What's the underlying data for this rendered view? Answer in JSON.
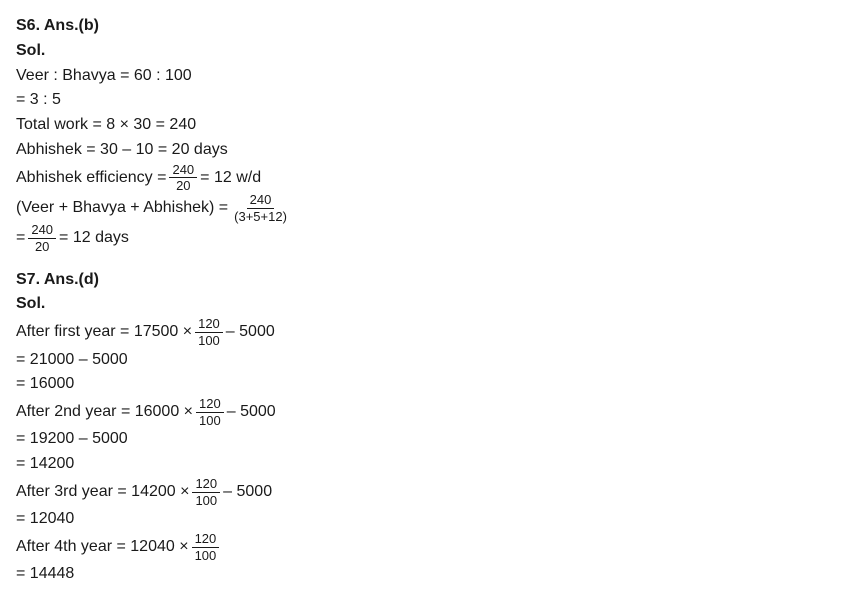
{
  "s6": {
    "heading": "S6. Ans.(b)",
    "sol_label": "Sol.",
    "line1": "Veer : Bhavya = 60 : 100",
    "line2": "= 3 : 5",
    "line3": "Total work = 8 × 30 = 240",
    "line4": "Abhishek = 30 – 10 = 20 days",
    "line5_pre": "Abhishek efficiency =",
    "line5_frac_num": "240",
    "line5_frac_den": "20",
    "line5_post": "= 12 w/d",
    "line6_pre": "(Veer  +  Bhavya  +  Abhishek) =",
    "line6_frac_num": "240",
    "line6_frac_den": "(3+5+12)",
    "line7_pre": "=",
    "line7_frac_num": "240",
    "line7_frac_den": "20",
    "line7_post": "= 12 days"
  },
  "s7": {
    "heading": "S7. Ans.(d)",
    "sol_label": "Sol.",
    "l1_pre": "After first year = 17500 ×",
    "l1_num": "120",
    "l1_den": "100",
    "l1_post": "– 5000",
    "l2": "= 21000 – 5000",
    "l3": "= 16000",
    "l4_pre": "After 2nd year = 16000 ×",
    "l4_num": "120",
    "l4_den": "100",
    "l4_post": "– 5000",
    "l5": "= 19200 – 5000",
    "l6": "= 14200",
    "l7_pre": "After 3rd year = 14200 ×",
    "l7_num": "120",
    "l7_den": "100",
    "l7_post": "– 5000",
    "l8": "= 12040",
    "l9_pre": "After 4th year = 12040 ×",
    "l9_num": "120",
    "l9_den": "100",
    "l10": "= 14448"
  }
}
